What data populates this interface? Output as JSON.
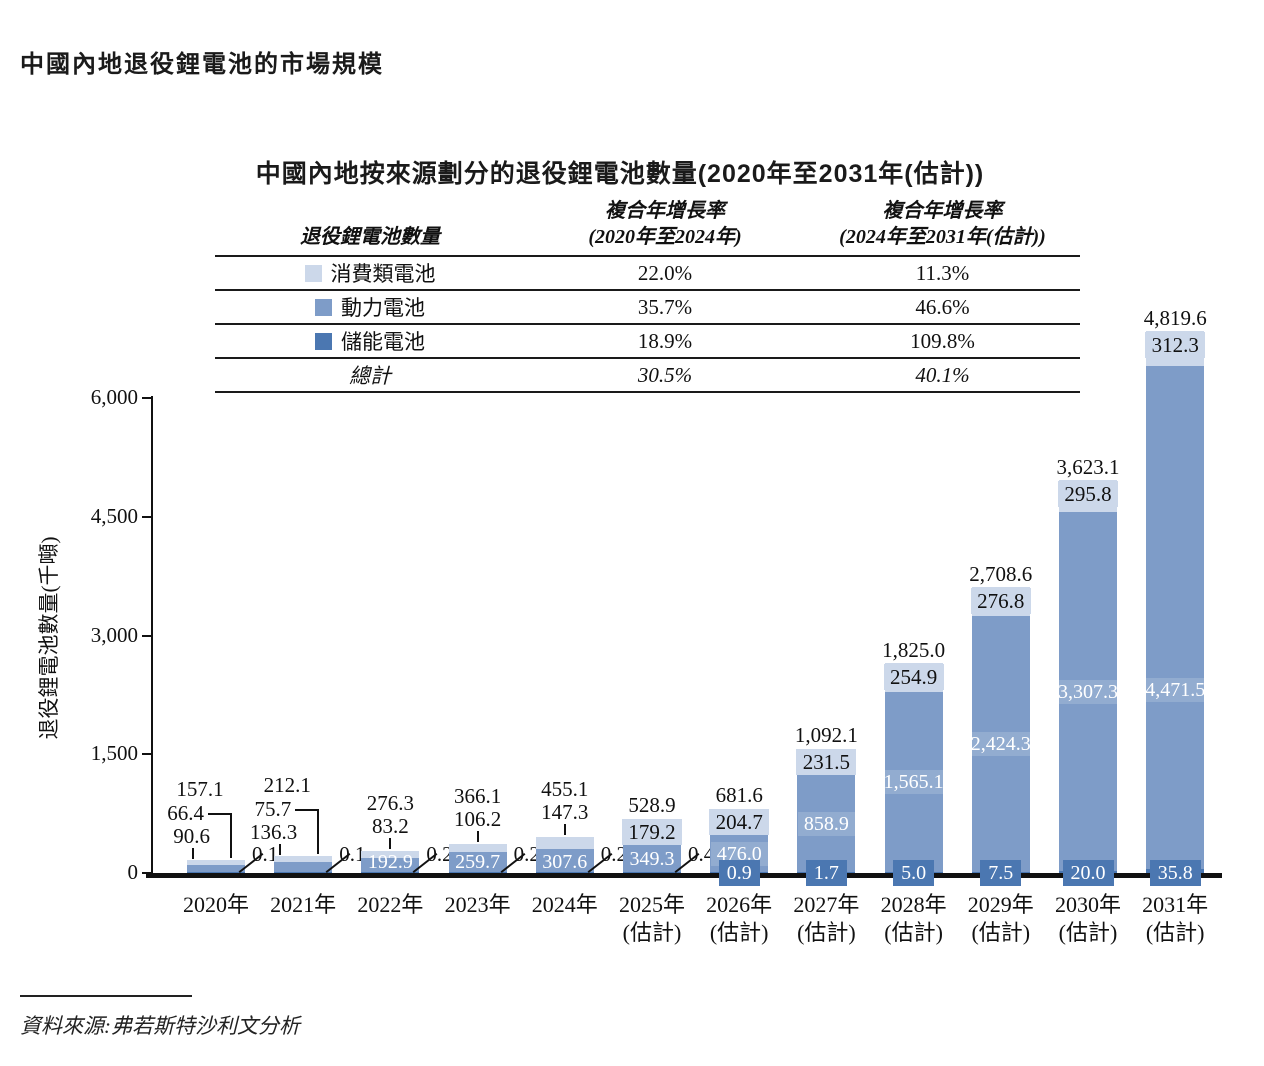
{
  "page": {
    "main_title": "中國內地退役鋰電池的市場規模",
    "chart_title": "中國內地按來源劃分的退役鋰電池數量(2020年至2031年(估計))",
    "source_label": "資料來源:弗若斯特沙利文分析"
  },
  "colors": {
    "consumer": "#ccd8ea",
    "power": "#7e9cc8",
    "storage": "#4b77b1",
    "axis": "#111111",
    "callout_box": "#4b77b1"
  },
  "cagr_table": {
    "col_battery_header": "退役鋰電池數量",
    "col_cagr1_line1": "複合年增長率",
    "col_cagr1_line2": "(2020年至2024年)",
    "col_cagr2_line1": "複合年增長率",
    "col_cagr2_line2": "(2024年至2031年(估計))",
    "rows": [
      {
        "label": "消費類電池",
        "cagr_2020_2024": "22.0%",
        "cagr_2024_2031": "11.3%"
      },
      {
        "label": "動力電池",
        "cagr_2020_2024": "35.7%",
        "cagr_2024_2031": "46.6%"
      },
      {
        "label": "儲能電池",
        "cagr_2020_2024": "18.9%",
        "cagr_2024_2031": "109.8%"
      },
      {
        "label": "總計",
        "cagr_2020_2024": "30.5%",
        "cagr_2024_2031": "40.1%"
      }
    ]
  },
  "chart_data": {
    "type": "bar",
    "stacked": true,
    "title": "中國內地按來源劃分的退役鋰電池數量(2020年至2031年(估計))",
    "xlabel": "",
    "ylabel": "退役鋰電池數量(千噸)",
    "ylim": [
      0,
      6000
    ],
    "yticks": [
      0,
      1500,
      3000,
      4500,
      6000
    ],
    "ytick_labels": [
      "0",
      "1,500",
      "3,000",
      "4,500",
      "6,000"
    ],
    "grid": false,
    "legend_position": "table-above-chart",
    "categories": [
      "2020年",
      "2021年",
      "2022年",
      "2023年",
      "2024年",
      "2025年(估計)",
      "2026年(估計)",
      "2027年(估計)",
      "2028年(估計)",
      "2029年(估計)",
      "2030年(估計)",
      "2031年(估計)"
    ],
    "x_tick_labels": [
      [
        "2020年",
        ""
      ],
      [
        "2021年",
        ""
      ],
      [
        "2022年",
        ""
      ],
      [
        "2023年",
        ""
      ],
      [
        "2024年",
        ""
      ],
      [
        "2025年",
        "(估計)"
      ],
      [
        "2026年",
        "(估計)"
      ],
      [
        "2027年",
        "(估計)"
      ],
      [
        "2028年",
        "(估計)"
      ],
      [
        "2029年",
        "(估計)"
      ],
      [
        "2030年",
        "(估計)"
      ],
      [
        "2031年",
        "(估計)"
      ]
    ],
    "series": [
      {
        "name": "消費類電池",
        "color": "#ccd8ea",
        "values": [
          66.4,
          75.7,
          83.2,
          106.2,
          147.3,
          179.2,
          204.7,
          231.5,
          254.9,
          276.8,
          295.8,
          312.3
        ]
      },
      {
        "name": "動力電池",
        "color": "#7e9cc8",
        "values": [
          90.6,
          136.3,
          192.9,
          259.7,
          307.6,
          349.3,
          476.0,
          858.9,
          1565.1,
          2424.3,
          3307.3,
          4471.5
        ]
      },
      {
        "name": "儲能電池",
        "color": "#4b77b1",
        "values": [
          0.1,
          0.1,
          0.2,
          0.2,
          0.2,
          0.4,
          0.9,
          1.7,
          5.0,
          7.5,
          20.0,
          35.8
        ]
      }
    ],
    "totals": [
      157.1,
      212.1,
      276.3,
      366.1,
      455.1,
      528.9,
      681.6,
      1092.1,
      1825.0,
      2708.6,
      3623.1,
      4819.6
    ]
  }
}
